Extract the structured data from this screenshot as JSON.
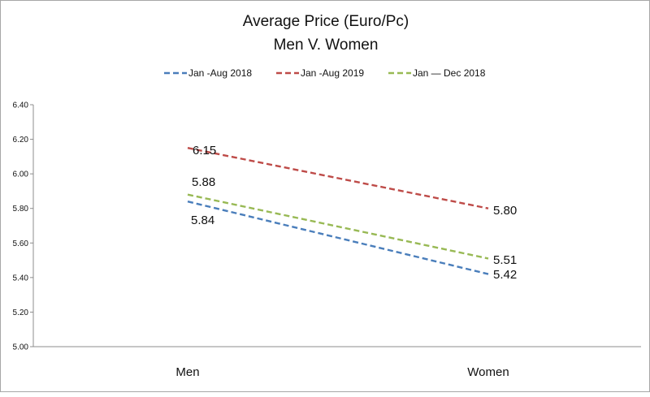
{
  "chart_data": {
    "type": "line",
    "title": "Average Price (Euro/Pc)",
    "subtitle": "Men V. Women",
    "categories": [
      "Men",
      "Women"
    ],
    "ylim": [
      5.0,
      6.4
    ],
    "yticks": [
      "5.00",
      "5.20",
      "5.40",
      "5.60",
      "5.80",
      "6.00",
      "6.20",
      "6.40"
    ],
    "legend_position": "top",
    "grid": false,
    "series": [
      {
        "name": "Jan -Aug 2018",
        "values": [
          5.84,
          5.42
        ],
        "labels": [
          "5.84",
          "5.42"
        ],
        "color": "#4a7ebb",
        "style": "dashed"
      },
      {
        "name": "Jan -Aug 2019",
        "values": [
          6.15,
          5.8
        ],
        "labels": [
          "6.15",
          "5.80"
        ],
        "color": "#be4b48",
        "style": "dashed"
      },
      {
        "name": "Jan — Dec 2018",
        "values": [
          5.88,
          5.51
        ],
        "labels": [
          "5.88",
          "5.51"
        ],
        "color": "#98b954",
        "style": "dashed"
      }
    ]
  }
}
